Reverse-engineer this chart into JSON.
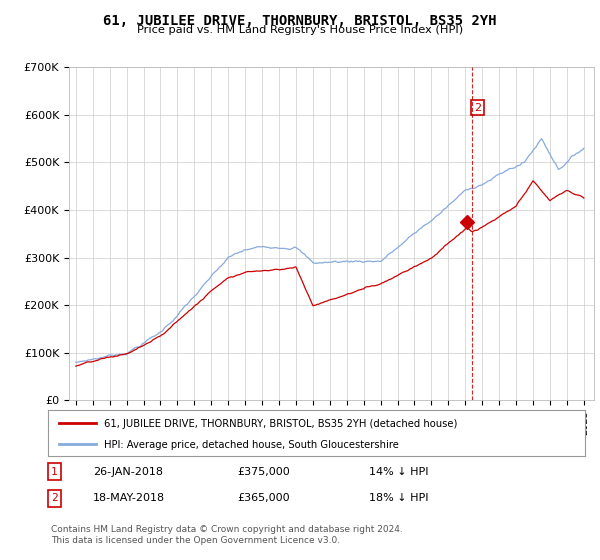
{
  "title": "61, JUBILEE DRIVE, THORNBURY, BRISTOL, BS35 2YH",
  "subtitle": "Price paid vs. HM Land Registry's House Price Index (HPI)",
  "ylim": [
    0,
    700000
  ],
  "yticks": [
    0,
    100000,
    200000,
    300000,
    400000,
    500000,
    600000,
    700000
  ],
  "ytick_labels": [
    "£0",
    "£100K",
    "£200K",
    "£300K",
    "£400K",
    "£500K",
    "£600K",
    "£700K"
  ],
  "hpi_color": "#88aadd",
  "price_color": "#cc0000",
  "vline2_date": 2018.38,
  "legend_label1": "61, JUBILEE DRIVE, THORNBURY, BRISTOL, BS35 2YH (detached house)",
  "legend_label2": "HPI: Average price, detached house, South Gloucestershire",
  "ann1_text": "26-JAN-2018",
  "ann1_price": "£375,000",
  "ann1_hpi": "14% ↓ HPI",
  "ann2_text": "18-MAY-2018",
  "ann2_price": "£365,000",
  "ann2_hpi": "18% ↓ HPI",
  "footer": "Contains HM Land Registry data © Crown copyright and database right 2024.\nThis data is licensed under the Open Government Licence v3.0.",
  "background_color": "#ffffff",
  "grid_color": "#cccccc"
}
